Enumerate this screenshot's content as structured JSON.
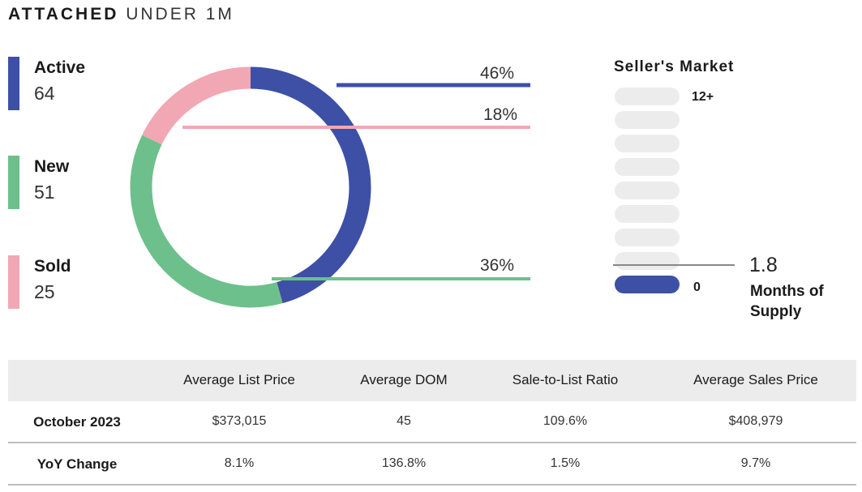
{
  "title": {
    "bold": "ATTACHED",
    "light": "UNDER 1M"
  },
  "colors": {
    "active": "#3d50a6",
    "new": "#6dc08b",
    "sold": "#f2a7b4",
    "inactive_pill": "#ececec"
  },
  "chart_data": {
    "type": "pie",
    "variant": "donut",
    "categories": [
      "Active",
      "New",
      "Sold"
    ],
    "values": [
      64,
      51,
      25
    ],
    "percent_labels": [
      "46%",
      "36%",
      "18%"
    ]
  },
  "legend": [
    {
      "label": "Active",
      "value": "64"
    },
    {
      "label": "New",
      "value": "51"
    },
    {
      "label": "Sold",
      "value": "25"
    }
  ],
  "gauge": {
    "title": "Seller's Market",
    "top_label": "12+",
    "bottom_label": "0",
    "value": "1.8",
    "value_number": 1.8,
    "scale_max": 12,
    "caption_line1": "Months of",
    "caption_line2": "Supply",
    "segments": 9,
    "filled_segments": 1
  },
  "table": {
    "headers": [
      "Average List Price",
      "Average DOM",
      "Sale-to-List Ratio",
      "Average Sales Price"
    ],
    "rows": [
      {
        "label": "October 2023",
        "cells": [
          "$373,015",
          "45",
          "109.6%",
          "$408,979"
        ]
      },
      {
        "label": "YoY Change",
        "cells": [
          "8.1%",
          "136.8%",
          "1.5%",
          "9.7%"
        ]
      }
    ]
  }
}
